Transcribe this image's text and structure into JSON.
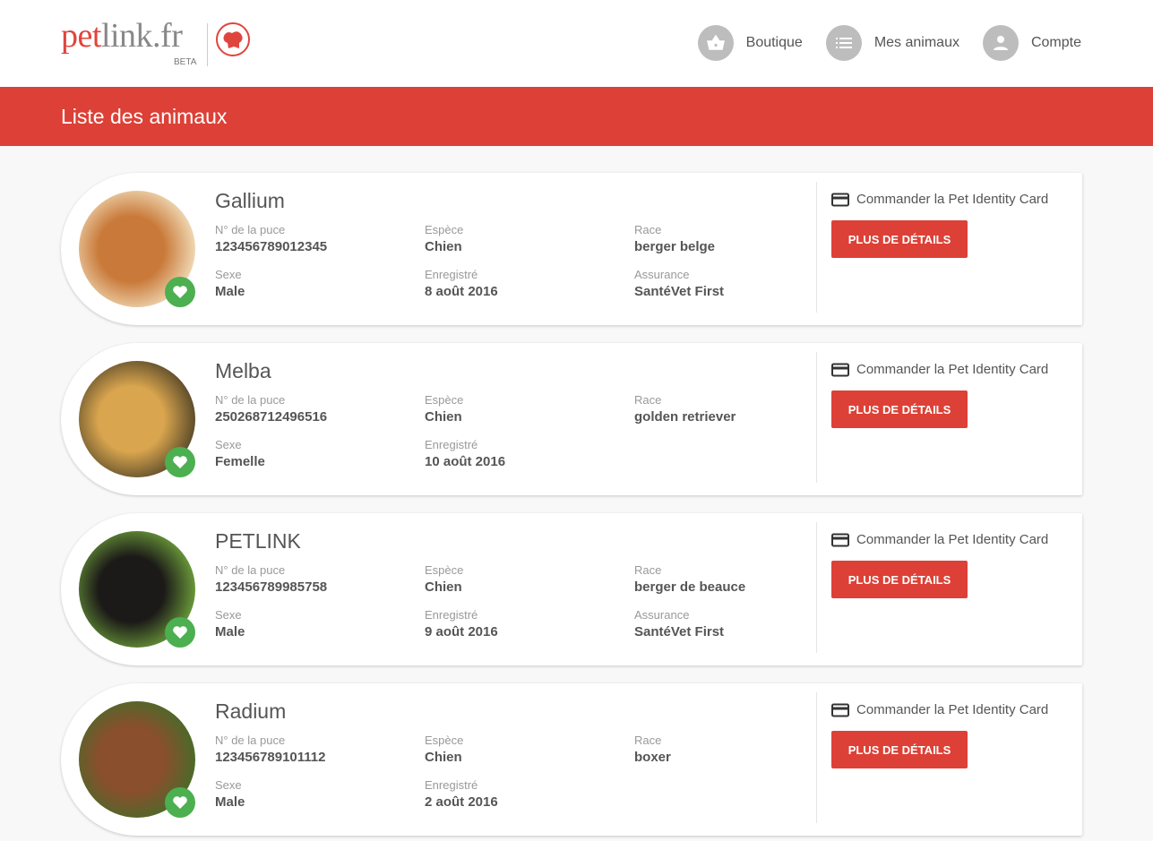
{
  "header": {
    "logo_text": "petlink.fr",
    "logo_badge": "BETA",
    "nav": [
      {
        "label": "Boutique",
        "icon": "basket-icon"
      },
      {
        "label": "Mes animaux",
        "icon": "list-icon"
      },
      {
        "label": "Compte",
        "icon": "user-icon"
      }
    ]
  },
  "banner": {
    "title": "Liste des animaux"
  },
  "labels": {
    "chip": "N° de la puce",
    "species": "Espèce",
    "breed": "Race",
    "sex": "Sexe",
    "registered": "Enregistré",
    "insurance": "Assurance",
    "order": "Commander la Pet Identity Card",
    "details": "PLUS DE DÉTAILS"
  },
  "pets": [
    {
      "name": "Gallium",
      "chip": "123456789012345",
      "species": "Chien",
      "breed": "berger belge",
      "sex": "Male",
      "registered": "8 août 2016",
      "insurance": "SantéVet First",
      "photo_colors": [
        "#c97a3a",
        "#f0d9b5"
      ]
    },
    {
      "name": "Melba",
      "chip": "250268712496516",
      "species": "Chien",
      "breed": "golden retriever",
      "sex": "Femelle",
      "registered": "10 août 2016",
      "insurance": null,
      "photo_colors": [
        "#d9a54e",
        "#5a4a2a"
      ]
    },
    {
      "name": "PETLINK",
      "chip": "123456789985758",
      "species": "Chien",
      "breed": "berger de beauce",
      "sex": "Male",
      "registered": "9 août 2016",
      "insurance": "SantéVet First",
      "photo_colors": [
        "#1c1a18",
        "#6a9a3a"
      ]
    },
    {
      "name": "Radium",
      "chip": "123456789101112",
      "species": "Chien",
      "breed": "boxer",
      "sex": "Male",
      "registered": "2 août 2016",
      "insurance": null,
      "photo_colors": [
        "#8a4f2c",
        "#4a6a2a"
      ]
    }
  ]
}
